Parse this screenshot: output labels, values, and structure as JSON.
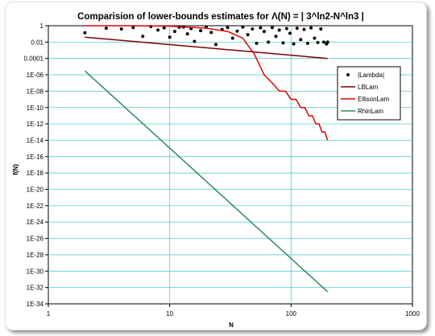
{
  "chart_data": {
    "type": "scatter",
    "title_prefix": "Comparision of lower-bounds estimates for ",
    "title_formula": "Λ(N) = | 3^ln2-N^ln3 |",
    "xlabel": "N",
    "ylabel": "f(N)",
    "x_scale": "log",
    "y_scale": "log",
    "xlim": [
      1,
      1000
    ],
    "ylim": [
      1e-34,
      1
    ],
    "x_tick_labels": [
      "1",
      "10",
      "100",
      "1000"
    ],
    "y_tick_labels": [
      "1",
      "0.01",
      "0.0001",
      "1E-06",
      "1E-08",
      "1E-10",
      "1E-12",
      "1E-14",
      "1E-16",
      "1E-18",
      "1E-20",
      "1E-22",
      "1E-24",
      "1E-26",
      "1E-28",
      "1E-30",
      "1E-32",
      "1E-34"
    ],
    "grid": true,
    "legend_position": "right",
    "series": [
      {
        "name": "|Lambda|",
        "style": "markers",
        "color": "#000000",
        "x": [
          2,
          3,
          4,
          5,
          6,
          7,
          8,
          9,
          10,
          11,
          12,
          13,
          14,
          15,
          16,
          18,
          20,
          22,
          24,
          27,
          30,
          33,
          36,
          40,
          44,
          48,
          52,
          56,
          60,
          65,
          70,
          75,
          80,
          86,
          92,
          98,
          105,
          112,
          120,
          128,
          137,
          146,
          156,
          166,
          176,
          186,
          196,
          200
        ],
        "y": [
          0.14,
          0.5,
          0.4,
          0.6,
          0.05,
          0.8,
          0.3,
          0.55,
          0.04,
          0.2,
          0.65,
          0.7,
          0.1,
          0.45,
          0.012,
          0.25,
          0.7,
          0.15,
          0.005,
          0.35,
          0.6,
          0.03,
          0.22,
          0.7,
          0.08,
          0.4,
          0.007,
          0.55,
          0.2,
          0.01,
          0.6,
          0.05,
          0.3,
          0.008,
          0.45,
          0.12,
          0.006,
          0.5,
          0.02,
          0.35,
          0.007,
          0.55,
          0.03,
          0.009,
          0.4,
          0.01,
          0.006,
          0.01
        ]
      },
      {
        "name": "LBLam",
        "style": "line",
        "color": "#800000",
        "x": [
          2,
          200
        ],
        "y": [
          0.04,
          0.0001
        ]
      },
      {
        "name": "EllisonLam",
        "style": "line",
        "color": "#dd0000",
        "x": [
          2,
          5,
          10,
          20,
          30,
          40,
          50,
          60,
          70,
          80,
          90,
          100,
          110,
          120,
          130,
          140,
          150,
          160,
          170,
          180,
          190,
          200
        ],
        "y": [
          1,
          1,
          0.9,
          0.5,
          0.2,
          0.03,
          0.0003,
          1e-06,
          1e-07,
          1e-08,
          1e-08,
          1e-09,
          1e-09,
          1e-10,
          1e-10,
          1e-11,
          1e-11,
          1e-12,
          1e-12,
          1e-13,
          1e-13,
          1e-14
        ]
      },
      {
        "name": "RhinLam",
        "style": "line",
        "color": "#2e8b57",
        "x": [
          2,
          200
        ],
        "y": [
          3e-06,
          3e-33
        ]
      }
    ]
  },
  "colors": {
    "title": "#1f7f6f",
    "plot_background": "#ffffff",
    "grid": "#55cccc",
    "axis": "#000000"
  }
}
